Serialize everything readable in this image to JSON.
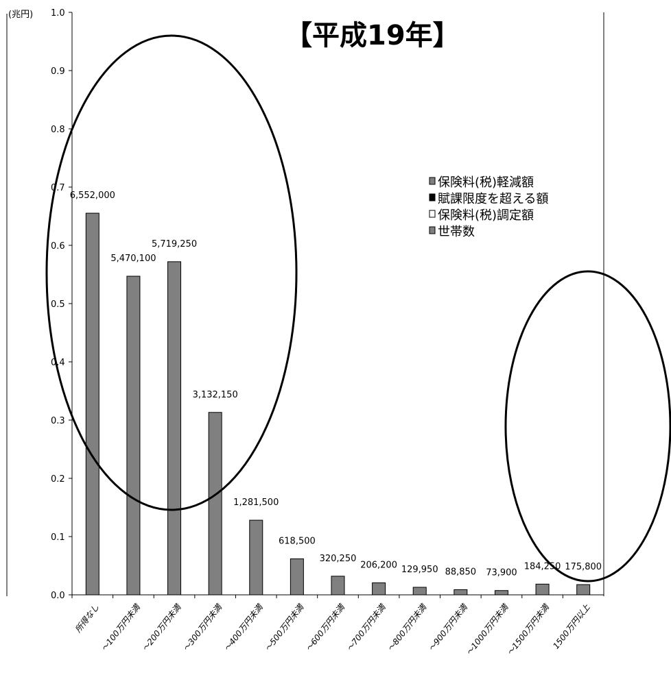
{
  "chart_data": {
    "type": "bar",
    "title": "【平成19年】",
    "ylabel": "(兆円)",
    "ylim": [
      0,
      1.0
    ],
    "yticks": [
      "0.0",
      "0.1",
      "0.2",
      "0.3",
      "0.4",
      "0.5",
      "0.6",
      "0.7",
      "0.8",
      "0.9",
      "1.0"
    ],
    "categories": [
      "所得なし",
      "～100万円未満",
      "～200万円未満",
      "～300万円未満",
      "～400万円未満",
      "～500万円未満",
      "～600万円未満",
      "～700万円未満",
      "～800万円未満",
      "～900万円未満",
      "～1000万円未満",
      "～1500万円未満",
      "1500万円以上"
    ],
    "series": [
      {
        "name": "世帯数",
        "values": [
          6552000,
          5470100,
          5719250,
          3132150,
          1281500,
          618500,
          320250,
          206200,
          129950,
          88850,
          73900,
          184250,
          175800
        ],
        "labels": [
          "6,552,000",
          "5,470,100",
          "5,719,250",
          "3,132,150",
          "1,281,500",
          "618,500",
          "320,250",
          "206,200",
          "129,950",
          "88,850",
          "73,900",
          "184,250",
          "175,800"
        ]
      }
    ],
    "bar_scale_max": 10000000,
    "legend": {
      "position": "right",
      "entries": [
        {
          "label": "保険料(税)軽減額",
          "color": "#808080"
        },
        {
          "label": "賦課限度を超える額",
          "color": "#000000"
        },
        {
          "label": "保険料(税)調定額",
          "color": "#ffffff"
        },
        {
          "label": "世帯数",
          "color": "#808080"
        }
      ]
    },
    "colors": {
      "bar": "#808080",
      "axis": "#000000"
    },
    "grid": false
  }
}
